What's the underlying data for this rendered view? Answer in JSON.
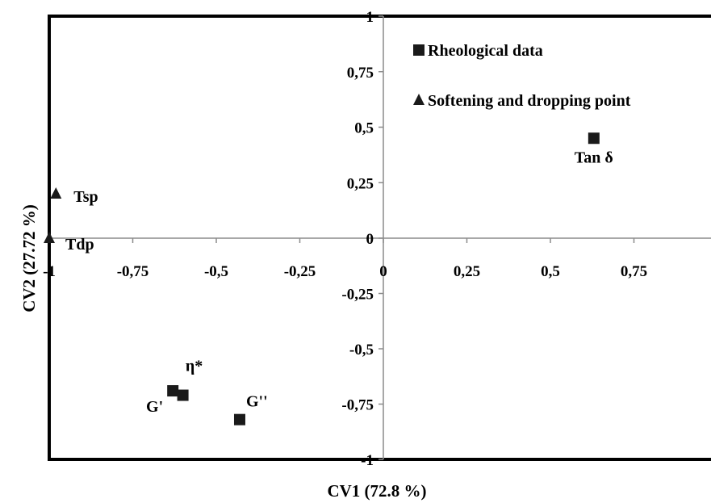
{
  "chart_data": {
    "type": "scatter",
    "title": "",
    "xlabel": "CV1 (72.8 %)",
    "ylabel": "CV2 (27.72 %)",
    "xlim": [
      -1,
      1
    ],
    "ylim": [
      -1,
      1
    ],
    "grid": false,
    "legend_position": "top-right",
    "x_ticks": [
      "-1",
      "-0,75",
      "-0,5",
      "-0,25",
      "0",
      "0,25",
      "0,5",
      "0,75"
    ],
    "x_tick_values": [
      -1,
      -0.75,
      -0.5,
      -0.25,
      0,
      0.25,
      0.5,
      0.75
    ],
    "y_ticks": [
      "1",
      "0,75",
      "0,5",
      "0,25",
      "0",
      "-0,25",
      "-0,5",
      "-0,75",
      "-1"
    ],
    "y_tick_values": [
      1,
      0.75,
      0.5,
      0.25,
      0,
      -0.25,
      -0.5,
      -0.75,
      -1
    ],
    "series": [
      {
        "name": "Rheological data",
        "marker": "square",
        "color": "#1a1a1a",
        "points": [
          {
            "label": "Tan δ",
            "x": 0.63,
            "y": 0.45,
            "label_pos": "below"
          },
          {
            "label": "η*",
            "x": -0.6,
            "y": -0.71,
            "label_pos": "above"
          },
          {
            "label": "G'",
            "x": -0.63,
            "y": -0.69,
            "label_pos": "left"
          },
          {
            "label": "G''",
            "x": -0.43,
            "y": -0.82,
            "label_pos": "above-right"
          }
        ]
      },
      {
        "name": "Softening and dropping point",
        "marker": "triangle",
        "color": "#1a1a1a",
        "points": [
          {
            "label": "Tsp",
            "x": -0.98,
            "y": 0.2,
            "label_pos": "right"
          },
          {
            "label": "Tdp",
            "x": -1.0,
            "y": 0.0,
            "label_pos": "right-low"
          }
        ]
      }
    ]
  }
}
